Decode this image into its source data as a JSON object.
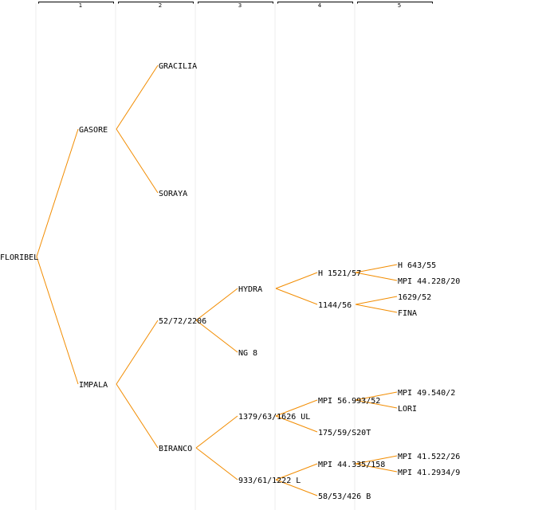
{
  "columns": [
    "1",
    "2",
    "3",
    "4",
    "5"
  ],
  "colors": {
    "edge": "#f28c00",
    "guide": "#eeeeee",
    "text": "#000000"
  },
  "tree": {
    "root": "FLORIBEL",
    "nodes": {
      "floribel": "FLORIBEL",
      "gasore": "GASORE",
      "impala": "IMPALA",
      "gracilia": "GRACILIA",
      "soraya": "SORAYA",
      "n52_72_2206": "52/72/2206",
      "biranco": "BIRANCO",
      "hydra": "HYDRA",
      "ng8": "NG 8",
      "n1379_63_1626_ul": "1379/63/1626 UL",
      "n933_61_1222_l": "933/61/1222 L",
      "h1521_57": "H 1521/57",
      "n1144_56": "1144/56",
      "mpi56_993_52": "MPI 56.993/52",
      "n175_59_s20t": "175/59/S20T",
      "mpi44_335_158": "MPI 44.335/158",
      "n58_53_426_b": "58/53/426 B",
      "h643_55": "H 643/55",
      "mpi44_228_20": "MPI 44.228/20",
      "n1629_52": "1629/52",
      "fina": "FINA",
      "mpi49_540_2": "MPI 49.540/2",
      "lori": "LORI",
      "mpi41_522_26": "MPI 41.522/26",
      "mpi41_2934_9": "MPI 41.2934/9"
    }
  }
}
